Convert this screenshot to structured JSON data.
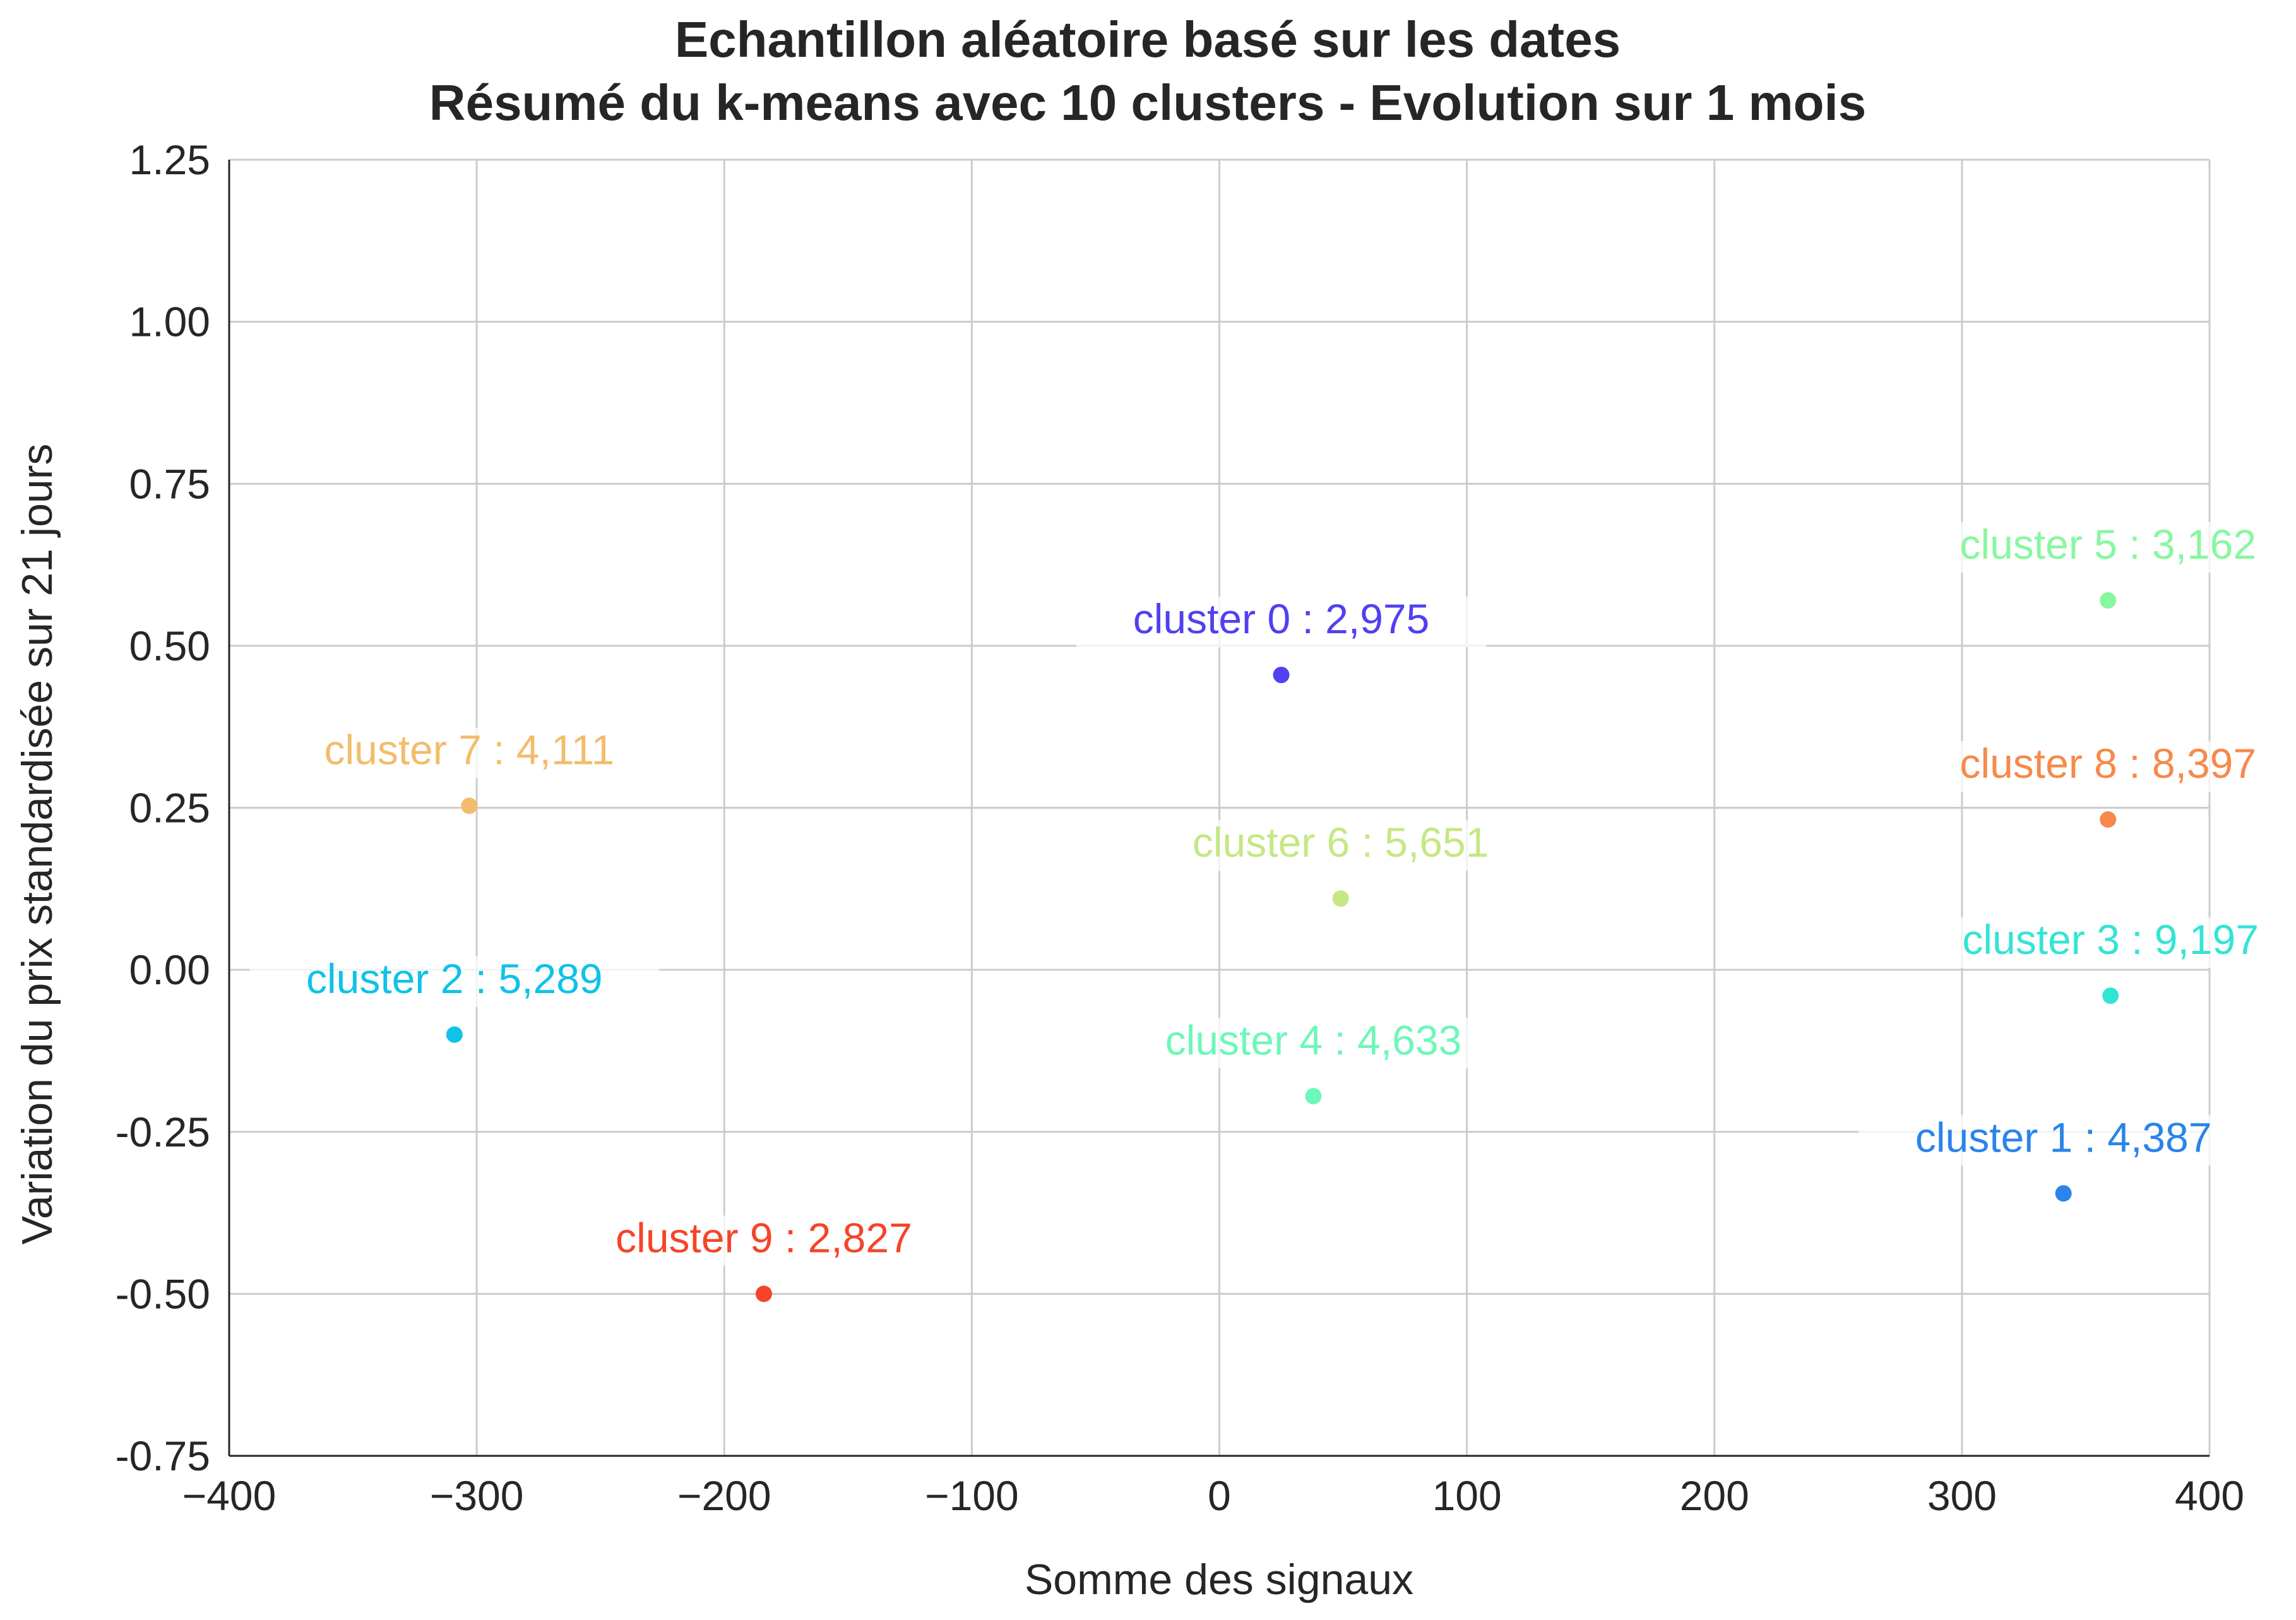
{
  "chart_data": {
    "type": "scatter",
    "title_lines": [
      "Echantillon aléatoire basé sur les dates",
      "Résumé du k-means avec 10 clusters - Evolution sur 1 mois"
    ],
    "xlabel": "Somme des signaux",
    "ylabel": "Variation du prix standardisée sur 21 jours",
    "xlim": [
      -400,
      400
    ],
    "ylim": [
      -0.75,
      1.25
    ],
    "x_ticks": [
      -400,
      -300,
      -200,
      -100,
      0,
      100,
      200,
      300,
      400
    ],
    "x_tick_labels": [
      "−400",
      "−300",
      "−200",
      "−100",
      "0",
      "100",
      "200",
      "300",
      "400"
    ],
    "y_ticks": [
      -0.75,
      -0.5,
      -0.25,
      0,
      0.25,
      0.5,
      0.75,
      1.0,
      1.25
    ],
    "y_tick_labels": [
      "-0.75",
      "-0.50",
      "-0.25",
      "0.00",
      "0.25",
      "0.50",
      "0.75",
      "1.00",
      "1.25"
    ],
    "grid": true,
    "points": [
      {
        "label": "cluster 0 : 2,975",
        "x": 25,
        "y": 0.455,
        "color": "#5040f0"
      },
      {
        "label": "cluster 1 : 4,387",
        "x": 341,
        "y": -0.345,
        "color": "#2a84ea"
      },
      {
        "label": "cluster 2 : 5,289",
        "x": -309,
        "y": -0.1,
        "color": "#0fc2e8"
      },
      {
        "label": "cluster 3 : 9,197",
        "x": 360,
        "y": -0.04,
        "color": "#33e4d4"
      },
      {
        "label": "cluster 4 : 4,633",
        "x": 38,
        "y": -0.195,
        "color": "#6cf8b8"
      },
      {
        "label": "cluster 5 : 3,162",
        "x": 359,
        "y": 0.57,
        "color": "#88f7a0"
      },
      {
        "label": "cluster 6 : 5,651",
        "x": 49,
        "y": 0.11,
        "color": "#c4e884"
      },
      {
        "label": "cluster 7 : 4,111",
        "x": -303,
        "y": 0.253,
        "color": "#f2bc6c"
      },
      {
        "label": "cluster 8 : 8,397",
        "x": 359,
        "y": 0.232,
        "color": "#f7894a"
      },
      {
        "label": "cluster 9 : 2,827",
        "x": -184,
        "y": -0.5,
        "color": "#f54428"
      }
    ]
  }
}
